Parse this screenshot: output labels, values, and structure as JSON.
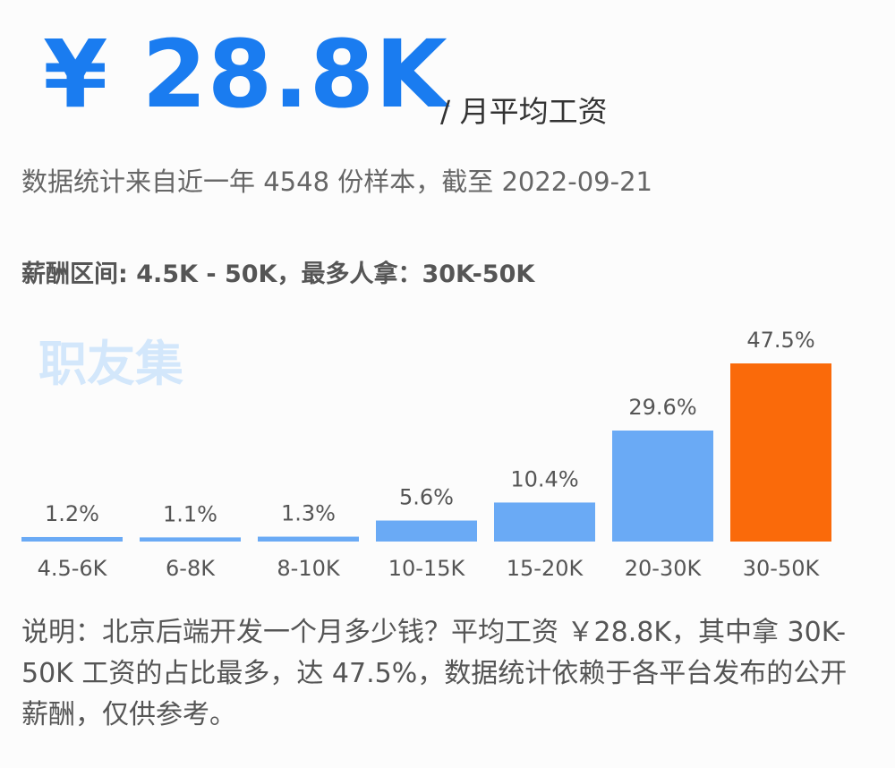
{
  "header": {
    "value": "¥ 28.8K",
    "unit": "/ 月平均工资",
    "note": "数据统计来自近一年 4548 份样本，截至 2022-09-21",
    "range": "薪酬区间: 4.5K - 50K，最多人拿：30K-50K"
  },
  "watermark": "职友集",
  "description": "说明：北京后端开发一个月多少钱？平均工资 ￥28.8K，其中拿 30K-50K 工资的占比最多，达 47.5%，数据统计依赖于各平台发布的公开薪酬，仅供参考。",
  "chart_data": {
    "type": "bar",
    "categories": [
      "4.5-6K",
      "6-8K",
      "8-10K",
      "10-15K",
      "15-20K",
      "20-30K",
      "30-50K"
    ],
    "values": [
      1.2,
      1.1,
      1.3,
      5.6,
      10.4,
      29.6,
      47.5
    ],
    "value_labels": [
      "1.2%",
      "1.1%",
      "1.3%",
      "5.6%",
      "10.4%",
      "29.6%",
      "47.5%"
    ],
    "colors": [
      "#6aaaf5",
      "#6aaaf5",
      "#6aaaf5",
      "#6aaaf5",
      "#6aaaf5",
      "#6aaaf5",
      "#fa6a0a"
    ]
  }
}
